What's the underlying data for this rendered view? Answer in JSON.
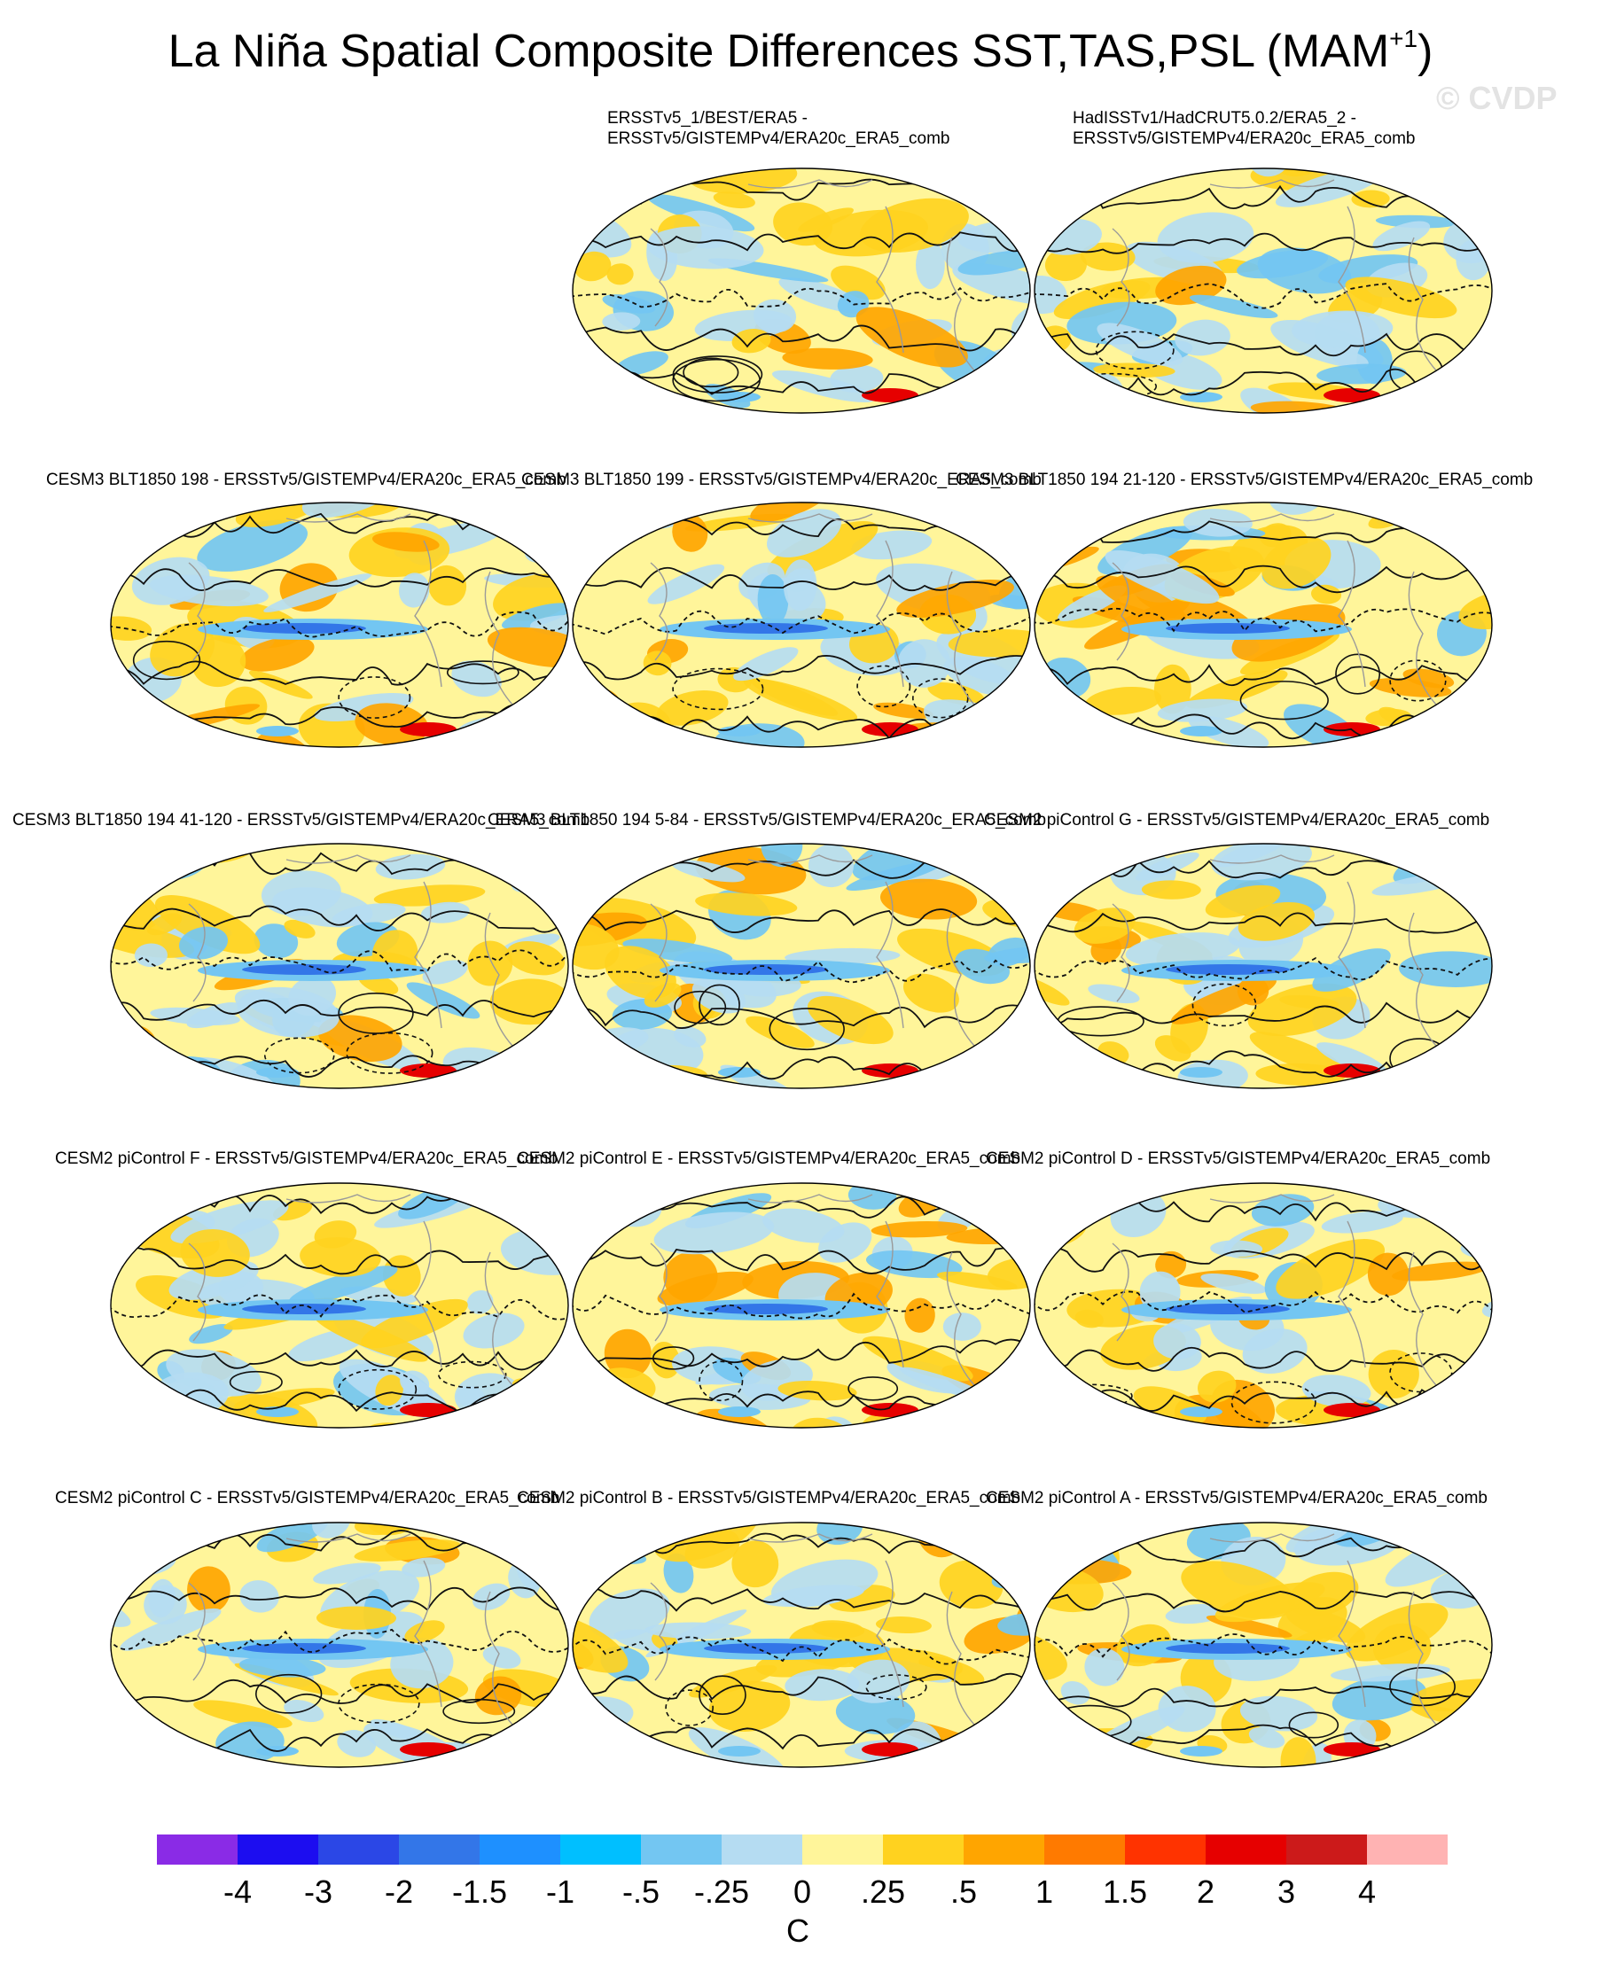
{
  "title": "La Niña Spatial Composite Differences SST,TAS,PSL (MAM",
  "title_superscript": "+1",
  "title_close": ")",
  "watermark": "© CVDP",
  "panels": [
    {
      "label_line1": "ERSSTv5_1/BEST/ERA5 -",
      "label_line2": "ERSSTv5/GISTEMPv4/ERA20c_ERA5_comb"
    },
    {
      "label_line1": "HadISSTv1/HadCRUT5.0.2/ERA5_2 -",
      "label_line2": "ERSSTv5/GISTEMPv4/ERA20c_ERA5_comb"
    },
    {
      "label": "CESM3 BLT1850 198 - ERSSTv5/GISTEMPv4/ERA20c_ERA5_comb"
    },
    {
      "label": "CESM3 BLT1850 199 - ERSSTv5/GISTEMPv4/ERA20c_ERA5_comb"
    },
    {
      "label": "CESM3 BLT1850 194 21-120 - ERSSTv5/GISTEMPv4/ERA20c_ERA5_comb"
    },
    {
      "label": "CESM3 BLT1850 194 41-120 - ERSSTv5/GISTEMPv4/ERA20c_ERA5_comb"
    },
    {
      "label": "CESM3 BLT1850 194 5-84 - ERSSTv5/GISTEMPv4/ERA20c_ERA5_comb"
    },
    {
      "label": "CESM2 piControl G - ERSSTv5/GISTEMPv4/ERA20c_ERA5_comb"
    },
    {
      "label": "CESM2 piControl F - ERSSTv5/GISTEMPv4/ERA20c_ERA5_comb"
    },
    {
      "label": "CESM2 piControl E - ERSSTv5/GISTEMPv4/ERA20c_ERA5_comb"
    },
    {
      "label": "CESM2 piControl D - ERSSTv5/GISTEMPv4/ERA20c_ERA5_comb"
    },
    {
      "label": "CESM2 piControl C - ERSSTv5/GISTEMPv4/ERA20c_ERA5_comb"
    },
    {
      "label": "CESM2 piControl B - ERSSTv5/GISTEMPv4/ERA20c_ERA5_comb"
    },
    {
      "label": "CESM2 piControl A - ERSSTv5/GISTEMPv4/ERA20c_ERA5_comb"
    }
  ],
  "colorbar": {
    "units": "C",
    "colors": [
      "#8a2be6",
      "#1c0df0",
      "#2b47e6",
      "#3376e8",
      "#1e90ff",
      "#00bfff",
      "#73c6f2",
      "#b5dcf2",
      "#fff59a",
      "#ffd21f",
      "#ffa500",
      "#ff7a00",
      "#ff3300",
      "#e60000",
      "#cc1a1a",
      "#ffb3b3"
    ],
    "ticks": [
      "-4",
      "-3",
      "-2",
      "-1.5",
      "-1",
      "-.5",
      "-.25",
      "0",
      ".25",
      ".5",
      "1",
      "1.5",
      "2",
      "3",
      "4"
    ]
  },
  "map_colors": {
    "yellow": "#fff59a",
    "light_blue": "#b5dcf2",
    "mid_blue": "#73c6f2",
    "orange": "#ffd21f",
    "dark_orange": "#ffa500",
    "blue": "#3376e8",
    "red": "#e60000"
  }
}
